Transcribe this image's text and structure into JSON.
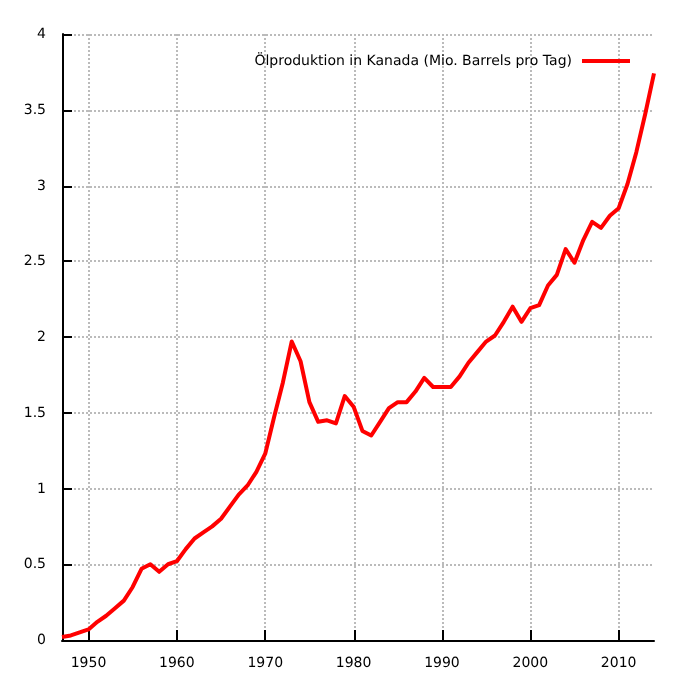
{
  "chart_data": {
    "type": "line",
    "x": [
      1947,
      1948,
      1949,
      1950,
      1951,
      1952,
      1953,
      1954,
      1955,
      1956,
      1957,
      1958,
      1959,
      1960,
      1961,
      1962,
      1963,
      1964,
      1965,
      1966,
      1967,
      1968,
      1969,
      1970,
      1971,
      1972,
      1973,
      1974,
      1975,
      1976,
      1977,
      1978,
      1979,
      1980,
      1981,
      1982,
      1983,
      1984,
      1985,
      1986,
      1987,
      1988,
      1989,
      1990,
      1991,
      1992,
      1993,
      1994,
      1995,
      1996,
      1997,
      1998,
      1999,
      2000,
      2001,
      2002,
      2003,
      2004,
      2005,
      2006,
      2007,
      2008,
      2009,
      2010,
      2011,
      2012,
      2013,
      2014
    ],
    "series": [
      {
        "name": "Ölproduktion in Kanada (Mio. Barrels pro Tag)",
        "color": "#ff0000",
        "values": [
          0.02,
          0.03,
          0.05,
          0.07,
          0.12,
          0.16,
          0.21,
          0.26,
          0.35,
          0.47,
          0.5,
          0.45,
          0.5,
          0.52,
          0.6,
          0.67,
          0.71,
          0.75,
          0.8,
          0.88,
          0.96,
          1.02,
          1.11,
          1.23,
          1.47,
          1.7,
          1.97,
          1.84,
          1.57,
          1.44,
          1.45,
          1.43,
          1.61,
          1.54,
          1.38,
          1.35,
          1.44,
          1.53,
          1.57,
          1.57,
          1.64,
          1.73,
          1.67,
          1.67,
          1.67,
          1.74,
          1.83,
          1.9,
          1.97,
          2.01,
          2.1,
          2.2,
          2.1,
          2.19,
          2.21,
          2.34,
          2.41,
          2.58,
          2.49,
          2.64,
          2.76,
          2.72,
          2.8,
          2.85,
          3.01,
          3.22,
          3.47,
          3.74
        ]
      }
    ],
    "xlim": [
      1947,
      2014
    ],
    "xticks": [
      1950,
      1960,
      1970,
      1980,
      1990,
      2000,
      2010
    ],
    "ylim": [
      0,
      4
    ],
    "yticks": [
      0,
      0.5,
      1,
      1.5,
      2,
      2.5,
      3,
      3.5,
      4
    ],
    "grid": true,
    "line_style": "solid",
    "marker": "none",
    "legend": "top right"
  }
}
